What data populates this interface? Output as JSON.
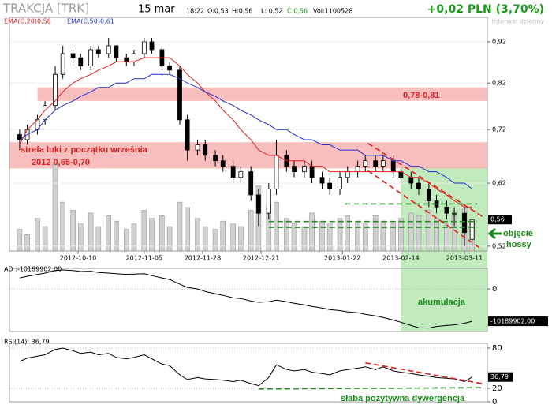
{
  "header": {
    "title": "TRAKCJA [TRK]",
    "date": "15 mar",
    "time": "18:22",
    "ohlc": [
      "O:0,53",
      "H:0,56",
      "L: 0,52",
      "C:0,56",
      "Vol:1100528"
    ],
    "change": "+0,02 PLN (3,70%)",
    "interval": "Interwał dzienny"
  },
  "chart_data": {
    "type": "candlestick",
    "log_scale": true,
    "x": [
      "2012-09-17",
      "2012-09-20",
      "2012-09-24",
      "2012-09-27",
      "2012-10-01",
      "2012-10-04",
      "2012-10-08",
      "2012-10-11",
      "2012-10-15",
      "2012-10-18",
      "2012-10-22",
      "2012-10-25",
      "2012-10-29",
      "2012-11-01",
      "2012-11-05",
      "2012-11-08",
      "2012-11-12",
      "2012-11-15",
      "2012-11-19",
      "2012-11-22",
      "2012-11-26",
      "2012-11-29",
      "2012-12-03",
      "2012-12-06",
      "2012-12-10",
      "2012-12-13",
      "2012-12-17",
      "2012-12-20",
      "2012-12-24",
      "2012-12-27",
      "2012-12-31",
      "2013-01-03",
      "2013-01-07",
      "2013-01-10",
      "2013-01-14",
      "2013-01-17",
      "2013-01-21",
      "2013-01-24",
      "2013-01-28",
      "2013-01-31",
      "2013-02-04",
      "2013-02-07",
      "2013-02-11",
      "2013-02-14",
      "2013-02-18",
      "2013-02-21",
      "2013-02-25",
      "2013-02-28",
      "2013-03-04",
      "2013-03-07",
      "2013-03-11",
      "2013-03-14"
    ],
    "open": [
      0.71,
      0.7,
      0.72,
      0.74,
      0.77,
      0.84,
      0.89,
      0.88,
      0.86,
      0.9,
      0.89,
      0.91,
      0.88,
      0.87,
      0.89,
      0.92,
      0.9,
      0.86,
      0.85,
      0.74,
      0.68,
      0.69,
      0.67,
      0.66,
      0.65,
      0.63,
      0.64,
      0.6,
      0.57,
      0.61,
      0.67,
      0.65,
      0.64,
      0.65,
      0.63,
      0.62,
      0.61,
      0.63,
      0.64,
      0.65,
      0.66,
      0.65,
      0.66,
      0.64,
      0.63,
      0.62,
      0.61,
      0.59,
      0.58,
      0.57,
      0.57,
      0.53
    ],
    "high": [
      0.72,
      0.73,
      0.75,
      0.78,
      0.86,
      0.91,
      0.9,
      0.89,
      0.91,
      0.91,
      0.93,
      0.91,
      0.89,
      0.9,
      0.93,
      0.93,
      0.91,
      0.87,
      0.86,
      0.75,
      0.7,
      0.7,
      0.68,
      0.67,
      0.66,
      0.65,
      0.65,
      0.61,
      0.62,
      0.7,
      0.68,
      0.66,
      0.66,
      0.66,
      0.64,
      0.63,
      0.64,
      0.65,
      0.66,
      0.67,
      0.67,
      0.67,
      0.67,
      0.65,
      0.64,
      0.63,
      0.62,
      0.6,
      0.59,
      0.58,
      0.58,
      0.56
    ],
    "low": [
      0.68,
      0.69,
      0.71,
      0.73,
      0.76,
      0.83,
      0.86,
      0.85,
      0.85,
      0.88,
      0.88,
      0.87,
      0.86,
      0.86,
      0.88,
      0.89,
      0.85,
      0.84,
      0.73,
      0.66,
      0.67,
      0.66,
      0.65,
      0.64,
      0.62,
      0.62,
      0.59,
      0.55,
      0.56,
      0.6,
      0.64,
      0.63,
      0.63,
      0.62,
      0.61,
      0.6,
      0.6,
      0.62,
      0.63,
      0.64,
      0.64,
      0.64,
      0.63,
      0.62,
      0.61,
      0.6,
      0.58,
      0.57,
      0.56,
      0.55,
      0.52,
      0.52
    ],
    "close": [
      0.7,
      0.72,
      0.74,
      0.77,
      0.84,
      0.89,
      0.88,
      0.86,
      0.9,
      0.89,
      0.91,
      0.88,
      0.87,
      0.89,
      0.92,
      0.9,
      0.86,
      0.85,
      0.74,
      0.68,
      0.69,
      0.67,
      0.66,
      0.65,
      0.63,
      0.64,
      0.6,
      0.57,
      0.61,
      0.67,
      0.65,
      0.64,
      0.65,
      0.63,
      0.62,
      0.61,
      0.63,
      0.64,
      0.65,
      0.66,
      0.65,
      0.66,
      0.64,
      0.63,
      0.62,
      0.61,
      0.59,
      0.58,
      0.57,
      0.57,
      0.54,
      0.56
    ],
    "volume": [
      800000,
      600000,
      1200000,
      900000,
      3200000,
      1800000,
      1500000,
      1000000,
      1400000,
      900000,
      1300000,
      1100000,
      800000,
      1000000,
      1500000,
      1200000,
      1300000,
      900000,
      1800000,
      1600000,
      1200000,
      900000,
      800000,
      1100000,
      1000000,
      900000,
      1500000,
      2400000,
      1700000,
      1800000,
      1200000,
      1000000,
      900000,
      1400000,
      1100000,
      1000000,
      1200000,
      1300000,
      1100000,
      1000000,
      1300000,
      1100000,
      1000000,
      1200000,
      1400000,
      1300000,
      1500000,
      1200000,
      1000000,
      1300000,
      1600000,
      1100528
    ],
    "series": [
      {
        "name": "EMA(C,20)0,58",
        "color": "#e02020",
        "values": [
          0.69,
          0.72,
          0.74,
          0.76,
          0.78,
          0.8,
          0.82,
          0.83,
          0.84,
          0.85,
          0.86,
          0.87,
          0.87,
          0.87,
          0.88,
          0.88,
          0.88,
          0.88,
          0.86,
          0.84,
          0.82,
          0.8,
          0.78,
          0.76,
          0.74,
          0.72,
          0.7,
          0.68,
          0.67,
          0.67,
          0.66,
          0.66,
          0.66,
          0.65,
          0.65,
          0.64,
          0.64,
          0.64,
          0.64,
          0.64,
          0.64,
          0.64,
          0.64,
          0.64,
          0.63,
          0.63,
          0.62,
          0.61,
          0.6,
          0.59,
          0.58,
          0.58
        ]
      },
      {
        "name": "EMA(C,50)0,61",
        "color": "#2030d0",
        "values": [
          0.7,
          0.71,
          0.72,
          0.74,
          0.76,
          0.77,
          0.78,
          0.79,
          0.8,
          0.81,
          0.81,
          0.82,
          0.82,
          0.83,
          0.83,
          0.84,
          0.84,
          0.84,
          0.83,
          0.82,
          0.81,
          0.8,
          0.79,
          0.78,
          0.77,
          0.76,
          0.75,
          0.74,
          0.73,
          0.72,
          0.72,
          0.71,
          0.7,
          0.7,
          0.69,
          0.69,
          0.68,
          0.68,
          0.68,
          0.67,
          0.67,
          0.67,
          0.66,
          0.66,
          0.65,
          0.65,
          0.64,
          0.64,
          0.63,
          0.62,
          0.62,
          0.61
        ]
      }
    ],
    "xlim": [
      "2012-09-13",
      "2013-03-20"
    ],
    "xticks": [
      "2012-10-10",
      "2012-11-05",
      "2012-11-28",
      "2012-12-21",
      "2013-01-22",
      "2013-02-14",
      "2013-03-11"
    ],
    "ylim": [
      0.513,
      0.985
    ],
    "yticks": [
      {
        "value": 0.92,
        "label": "0,92"
      },
      {
        "value": 0.82,
        "label": "0,82"
      },
      {
        "value": 0.72,
        "label": "0,72"
      },
      {
        "value": 0.62,
        "label": "0,62"
      },
      {
        "value": 0.52,
        "label": "0,52"
      }
    ],
    "last": {
      "value": 0.56,
      "label": "0,56"
    },
    "bands": [
      {
        "start": "2012-09-13",
        "low": 0.646,
        "high": 0.695,
        "color": "#f7aaaa"
      },
      {
        "start": "2012-09-24",
        "low": 0.78,
        "high": 0.81,
        "color": "#f7aaaa"
      }
    ],
    "accumulation": {
      "start": "2013-02-14",
      "top": 0.65,
      "color": "#b6e8b0"
    },
    "trendlines": [
      {
        "x": [
          "2013-01-23",
          "2013-03-16"
        ],
        "y": [
          0.585,
          0.585
        ],
        "color": "#2a8a2a"
      },
      {
        "x": [
          "2012-12-24",
          "2013-03-16"
        ],
        "y": [
          0.557,
          0.557
        ],
        "color": "#2a8a2a"
      },
      {
        "x": [
          "2012-12-24",
          "2013-03-16"
        ],
        "y": [
          0.548,
          0.548
        ],
        "color": "#2a8a2a"
      },
      {
        "x": [
          "2013-02-01",
          "2013-03-18"
        ],
        "y": [
          0.693,
          0.565
        ],
        "color": "#e02020"
      },
      {
        "x": [
          "2013-02-01",
          "2013-03-18"
        ],
        "y": [
          0.642,
          0.515
        ],
        "color": "#e02020"
      }
    ],
    "annotations": {
      "gap_zone": [
        "strefa luki z początku września",
        "2012 0,65-0,70"
      ],
      "upper_zone": "0,78-0,81",
      "bull": [
        "objęcie",
        "hossy"
      ],
      "accumulation": "akumulacja",
      "divergence": "słaba pozytywna dywergencja"
    },
    "indicators": [
      {
        "title": "AD :-10189902,00",
        "color": "#000000",
        "ylim": [
          -13400000,
          6500000
        ],
        "yticks": [
          0
        ],
        "last": {
          "value": -10189902,
          "label": "-10189902,00"
        },
        "values": [
          3500000,
          4000000,
          4600000,
          5000000,
          5800000,
          6000000,
          5800000,
          5500000,
          5600000,
          5200000,
          5000000,
          4800000,
          4600000,
          4700000,
          4800000,
          4200000,
          3500000,
          3000000,
          1500000,
          500000,
          0,
          -800000,
          -1500000,
          -2000000,
          -2800000,
          -3000000,
          -3800000,
          -4200000,
          -4000000,
          -3500000,
          -4000000,
          -4500000,
          -5000000,
          -5500000,
          -6000000,
          -6500000,
          -6800000,
          -7200000,
          -7500000,
          -8000000,
          -8500000,
          -9000000,
          -9800000,
          -10500000,
          -11500000,
          -12200000,
          -12300000,
          -11800000,
          -11500000,
          -11300000,
          -10800000,
          -10189902
        ]
      },
      {
        "title": "RSI(14): 36,79",
        "color": "#000000",
        "ylim": [
          0,
          87
        ],
        "yticks": [
          80,
          20,
          0
        ],
        "last": {
          "value": 36.79,
          "label": "36,79"
        },
        "values": [
          60,
          65,
          68,
          70,
          78,
          80,
          76,
          72,
          74,
          70,
          72,
          66,
          64,
          66,
          70,
          64,
          56,
          54,
          40,
          33,
          36,
          34,
          33,
          32,
          30,
          32,
          27,
          24,
          36,
          55,
          48,
          46,
          48,
          44,
          42,
          40,
          46,
          48,
          50,
          52,
          48,
          52,
          46,
          44,
          42,
          40,
          38,
          36,
          35,
          34,
          30,
          36.79
        ],
        "trendlines": [
          {
            "x": [
              "2013-01-31",
              "2013-03-18"
            ],
            "y": [
              58,
              27
            ],
            "color": "#e02020"
          },
          {
            "x": [
              "2012-12-20",
              "2013-03-18"
            ],
            "y": [
              19,
              21
            ],
            "color": "#2a8a2a"
          }
        ]
      }
    ]
  }
}
